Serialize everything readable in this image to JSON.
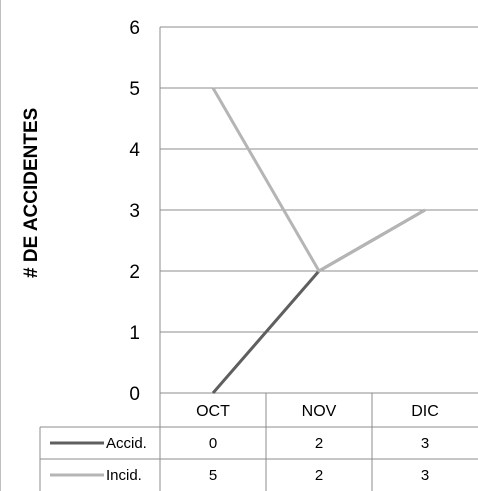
{
  "chart_data": {
    "type": "line",
    "title": "",
    "xlabel": "",
    "ylabel": "# DE ACCIDENTES",
    "categories": [
      "OCT",
      "NOV",
      "DIC"
    ],
    "ylim": [
      0,
      6
    ],
    "yticks": [
      "0",
      "1",
      "2",
      "3",
      "4",
      "5",
      "6"
    ],
    "grid": true,
    "legend": "data-table",
    "series": [
      {
        "name": "Accid.",
        "values": [
          0,
          2,
          3
        ],
        "color": "#5f5f5f"
      },
      {
        "name": "Incid.",
        "values": [
          5,
          2,
          3
        ],
        "color": "#b5b5b5"
      }
    ]
  }
}
